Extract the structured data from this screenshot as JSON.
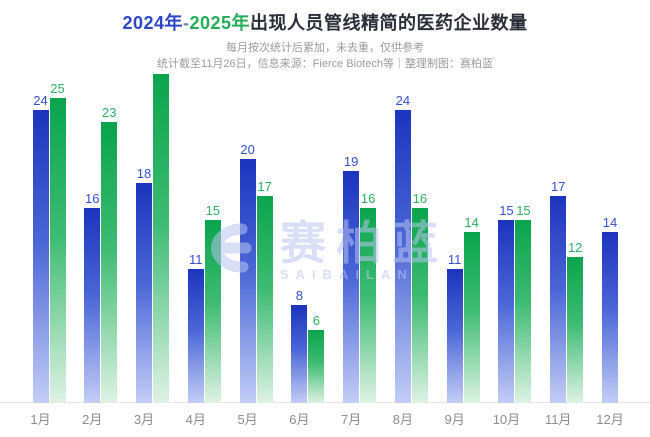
{
  "title": {
    "year_2024": "2024年",
    "dash": "-",
    "year_2025": "2025年",
    "rest": "出现人员管线精简的医药企业数量"
  },
  "subtitle_line1": "每月按次统计后累加，未去重，仅供参考",
  "subtitle_line2": "统计截至11月26日，信息来源：Fierce Biotech等｜整理制图：赛柏蓝",
  "watermark": {
    "logo": "saibailan-logo",
    "text_cn": "赛柏蓝",
    "text_en": "SAIBAILAN"
  },
  "colors": {
    "title_2024": "#2d47cc",
    "title_2025": "#23ad59",
    "title_text": "#2a2e38",
    "subtitle": "#9b9b9b",
    "bar_2024_top": "#1c34bd",
    "bar_2024_bottom": "#c3cdf6",
    "bar_2025_top": "#0aa44d",
    "bar_2025_bottom": "#def2e4",
    "label_2024": "#3351cf",
    "label_2025": "#2bb05e",
    "axis_line": "#e4e4e4",
    "month_label": "#8d8d8d",
    "watermark": "#b9c5f0"
  },
  "chart_data": {
    "type": "bar",
    "title": "2024年-2025年出现人员管线精简的医药企业数量",
    "categories": [
      "1月",
      "2月",
      "3月",
      "4月",
      "5月",
      "6月",
      "7月",
      "8月",
      "9月",
      "10月",
      "11月",
      "12月"
    ],
    "series": [
      {
        "name": "2024年",
        "key": "s2024",
        "values": [
          24,
          16,
          18,
          11,
          20,
          8,
          19,
          24,
          11,
          15,
          17,
          14
        ],
        "labels": [
          "24",
          "16",
          "18",
          "11",
          "20",
          "8",
          "19",
          "24",
          "11",
          "15",
          "17",
          "14"
        ]
      },
      {
        "name": "2025年",
        "key": "s2025",
        "values": [
          25,
          23,
          27,
          15,
          17,
          6,
          16,
          16,
          14,
          15,
          12,
          null
        ],
        "labels": [
          "25",
          "23",
          "",
          "15",
          "17",
          "6",
          "16",
          "16",
          "14",
          "15",
          "12",
          ""
        ],
        "note": "3月 bar is unlabeled in the chart; value 27 estimated from bar height. 12月 has no 2025 bar."
      }
    ],
    "ylim": [
      0,
      28
    ],
    "grid": false,
    "legend": "none",
    "value_labels": "above bars"
  }
}
